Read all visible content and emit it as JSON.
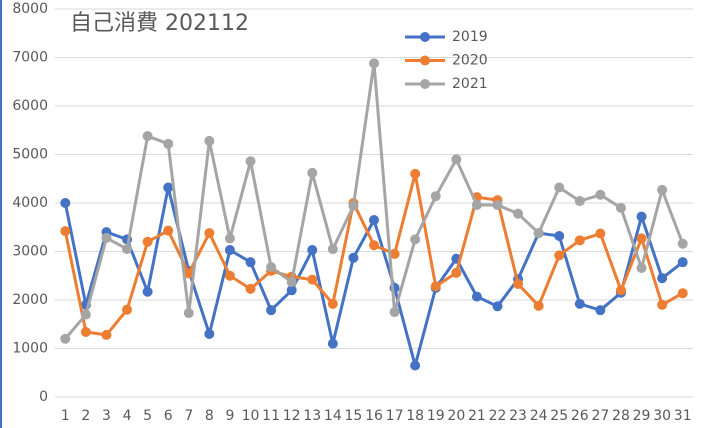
{
  "chart_data": {
    "type": "line",
    "title": "自己消費 202112",
    "categories": [
      1,
      2,
      3,
      4,
      5,
      6,
      7,
      8,
      9,
      10,
      11,
      12,
      13,
      14,
      15,
      16,
      17,
      18,
      19,
      20,
      21,
      22,
      23,
      24,
      25,
      26,
      27,
      28,
      29,
      30,
      31
    ],
    "series": [
      {
        "name": "2019",
        "color": "#4472c4",
        "values": [
          4000,
          1900,
          3400,
          3250,
          2170,
          4320,
          2600,
          1300,
          3030,
          2780,
          1790,
          2200,
          3030,
          1100,
          2870,
          3650,
          2250,
          650,
          2250,
          2850,
          2070,
          1870,
          2430,
          3380,
          3320,
          1920,
          1790,
          2150,
          3720,
          2450,
          2780
        ]
      },
      {
        "name": "2020",
        "color": "#ed7d31",
        "values": [
          3420,
          1340,
          1280,
          1800,
          3200,
          3430,
          2550,
          3380,
          2500,
          2230,
          2600,
          2480,
          2420,
          1920,
          4000,
          3130,
          2950,
          4600,
          2280,
          2560,
          4120,
          4060,
          2330,
          1880,
          2920,
          3230,
          3370,
          2200,
          3270,
          1900,
          2140
        ]
      },
      {
        "name": "2021",
        "color": "#a5a5a5",
        "values": [
          1200,
          1700,
          3280,
          3050,
          5380,
          5220,
          1730,
          5280,
          3270,
          4860,
          2680,
          2370,
          4620,
          3050,
          3940,
          6880,
          1750,
          3250,
          4140,
          4900,
          3960,
          3960,
          3780,
          3380,
          4320,
          4040,
          4170,
          3900,
          2660,
          4270,
          3160
        ]
      }
    ],
    "ylim": [
      0,
      8000
    ],
    "yticks": [
      0,
      1000,
      2000,
      3000,
      4000,
      5000,
      6000,
      7000,
      8000
    ],
    "grid": true
  }
}
